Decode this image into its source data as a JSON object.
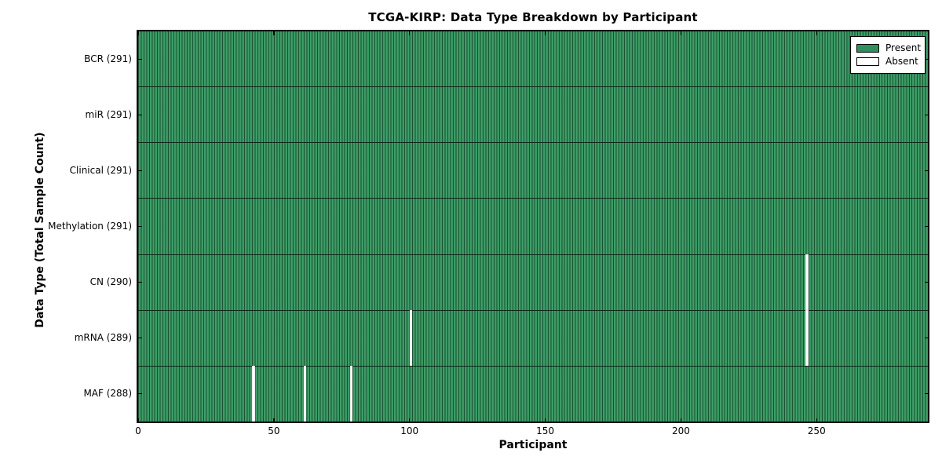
{
  "figure": {
    "title": "TCGA-KIRP: Data Type Breakdown by Participant",
    "xlabel": "Participant",
    "ylabel": "Data Type (Total Sample Count)"
  },
  "chart_data": {
    "type": "heatmap",
    "title": "TCGA-KIRP: Data Type Breakdown by Participant",
    "xlabel": "Participant",
    "ylabel": "Data Type (Total Sample Count)",
    "n_participants": 291,
    "x_range": [
      0,
      291
    ],
    "x_ticks": [
      0,
      50,
      100,
      150,
      200,
      250
    ],
    "grid": false,
    "legend_position": "upper right",
    "rows": [
      {
        "name": "BCR",
        "label": "BCR (291)",
        "total": 291,
        "absent_participants": []
      },
      {
        "name": "miR",
        "label": "miR (291)",
        "total": 291,
        "absent_participants": []
      },
      {
        "name": "Clinical",
        "label": "Clinical (291)",
        "total": 291,
        "absent_participants": []
      },
      {
        "name": "Methylation",
        "label": "Methylation (291)",
        "total": 291,
        "absent_participants": []
      },
      {
        "name": "CN",
        "label": "CN (290)",
        "total": 290,
        "absent_participants": [
          246
        ]
      },
      {
        "name": "mRNA",
        "label": "mRNA (289)",
        "total": 289,
        "absent_participants": [
          100,
          246
        ]
      },
      {
        "name": "MAF",
        "label": "MAF (288)",
        "total": 288,
        "absent_participants": [
          42,
          61,
          78
        ]
      }
    ],
    "colors": {
      "present": "#2f8f5d",
      "present_edge": "#1b5434",
      "absent": "#ffffff",
      "spine": "#000000"
    },
    "legend_items": [
      {
        "label": "Present",
        "color": "#2f8f5d"
      },
      {
        "label": "Absent",
        "color": "#ffffff"
      }
    ]
  }
}
